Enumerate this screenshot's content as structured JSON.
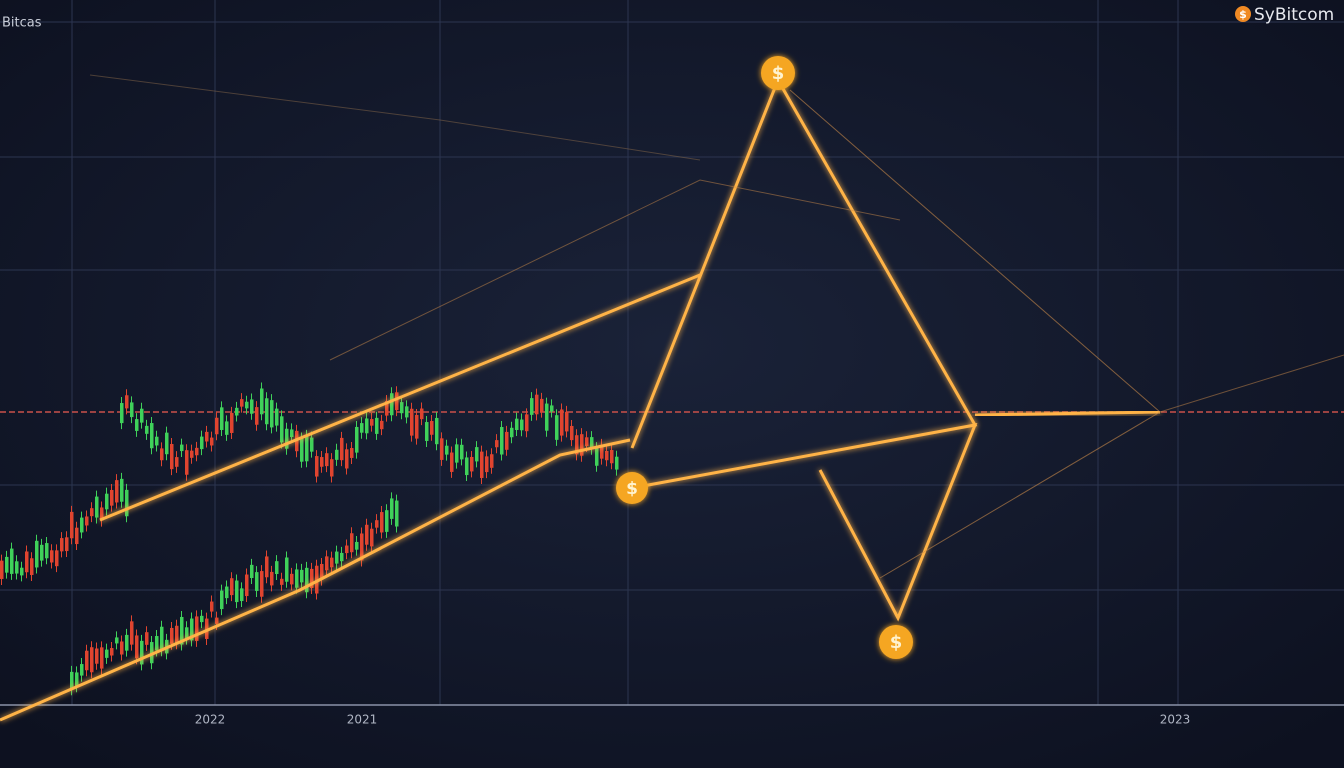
{
  "header": {
    "title": "Bitcas",
    "brand": "SyBitcom"
  },
  "axis_labels": [
    "2022",
    "2021",
    "2023"
  ],
  "coins": [
    "$",
    "$",
    "$",
    "$"
  ]
}
